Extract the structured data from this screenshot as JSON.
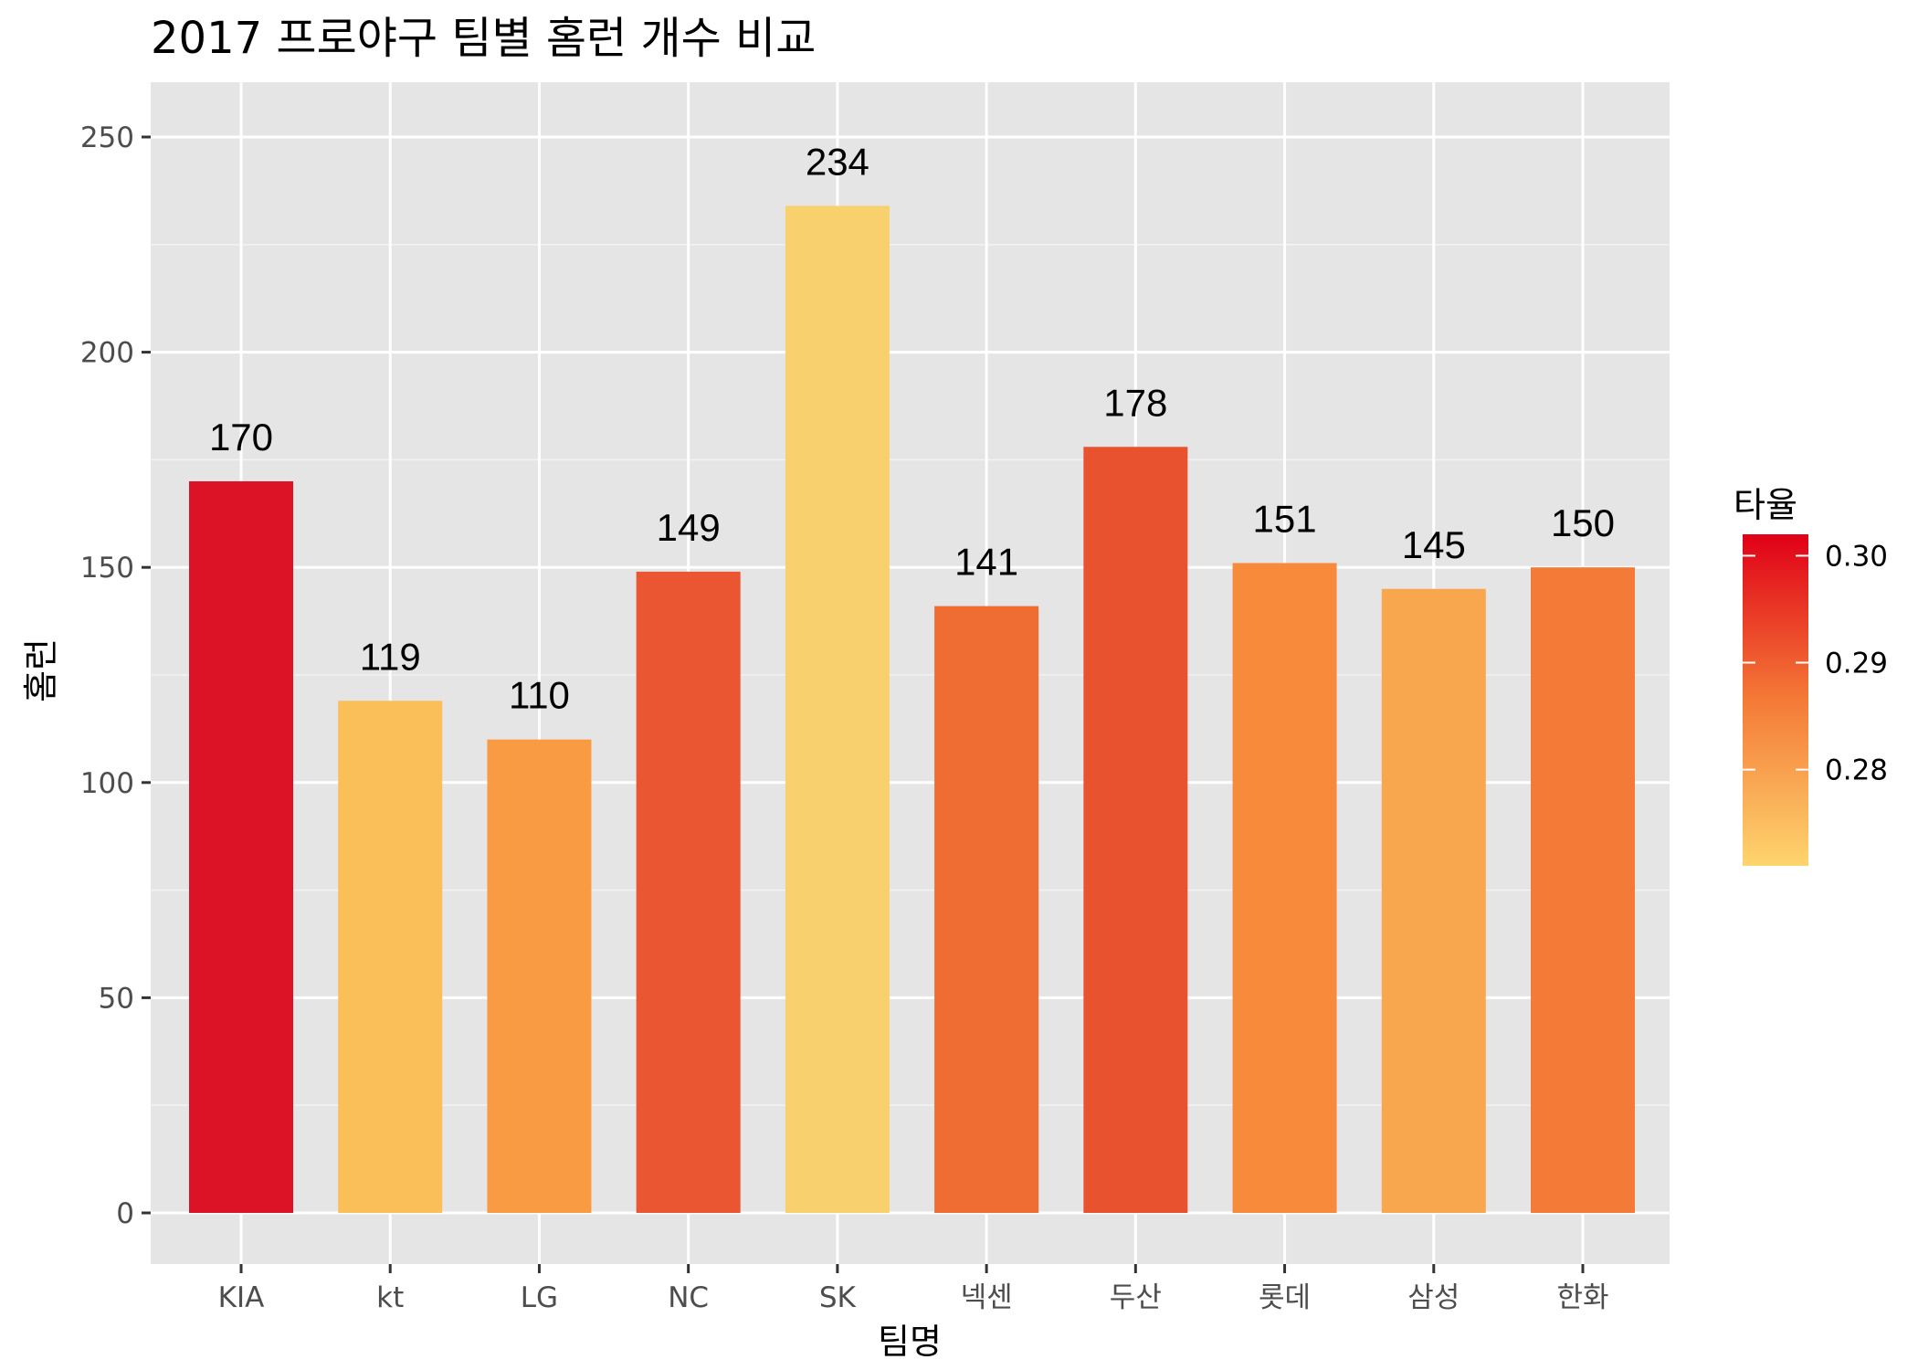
{
  "chart_data": {
    "type": "bar",
    "title": "2017 프로야구 팀별 홈런 개수 비교",
    "xlabel": "팀명",
    "ylabel": "홈런",
    "categories": [
      "KIA",
      "kt",
      "LG",
      "NC",
      "SK",
      "넥센",
      "두산",
      "롯데",
      "삼성",
      "한화"
    ],
    "values": [
      170,
      119,
      110,
      149,
      234,
      141,
      178,
      151,
      145,
      150
    ],
    "value_labels": [
      "170",
      "119",
      "110",
      "149",
      "234",
      "141",
      "178",
      "151",
      "145",
      "150"
    ],
    "fill_values": [
      0.302,
      0.275,
      0.281,
      0.293,
      0.271,
      0.29,
      0.294,
      0.285,
      0.279,
      0.287
    ],
    "fill_colors": [
      "#dc1226",
      "#fbbf5a",
      "#f99b43",
      "#ea5631",
      "#f9d06e",
      "#ef6c33",
      "#e9522f",
      "#f78a3b",
      "#f9a74f",
      "#f47a37"
    ],
    "ylim": [
      -12.5,
      250
    ],
    "yticks": [
      0,
      50,
      100,
      150,
      200,
      250
    ],
    "ytick_labels": [
      "0",
      "50",
      "100",
      "150",
      "200",
      "250"
    ],
    "grid": true,
    "legend": {
      "title": "타율",
      "position": "right",
      "range": [
        0.271,
        0.302
      ],
      "ticks": [
        0.28,
        0.29,
        0.3
      ],
      "tick_labels": [
        "0.28",
        "0.29",
        "0.30"
      ],
      "low_color": "#fed46e",
      "mid_color": "#f47a37",
      "high_color": "#e00018"
    },
    "panel_background": "#e5e5e5"
  }
}
